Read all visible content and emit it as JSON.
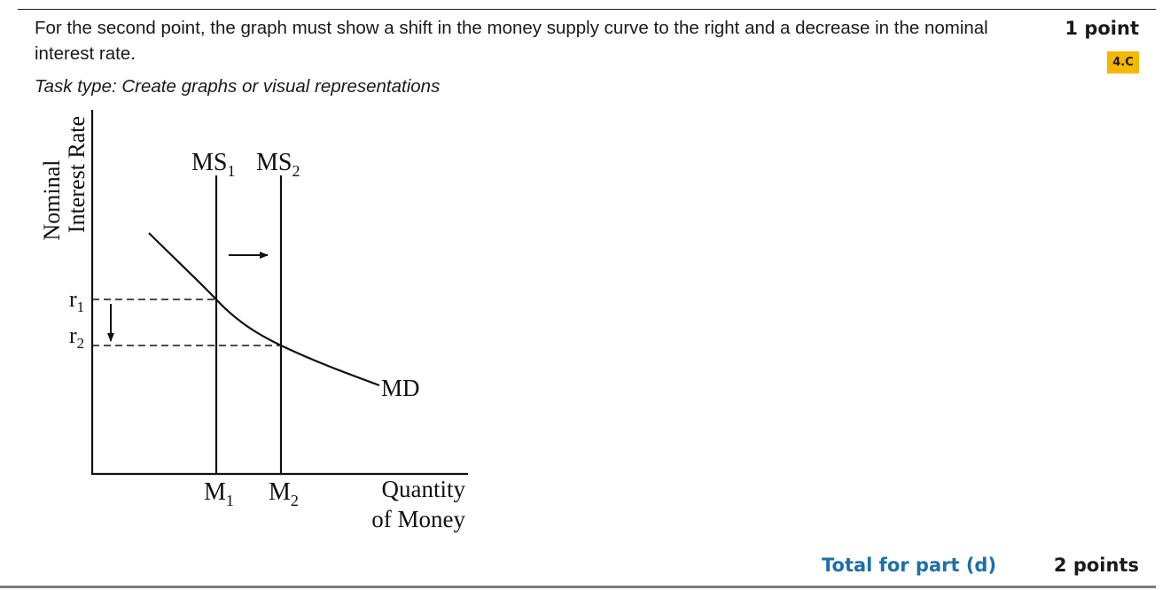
{
  "criterion": "For the second point, the graph must show a shift in the money supply curve to the right and a decrease in the nominal interest rate.",
  "task_type": "Task type: Create graphs or visual representations",
  "points": "1 point",
  "skill_badge": "4.C",
  "total_label": "Total for part (d)",
  "total_points": "2 points",
  "graph": {
    "y_axis_label_line1": "Nominal",
    "y_axis_label_line2": "Interest Rate",
    "x_axis_label_line1": "Quantity",
    "x_axis_label_line2": "of Money",
    "supply_1": {
      "base": "MS",
      "sub": "1"
    },
    "supply_2": {
      "base": "MS",
      "sub": "2"
    },
    "demand": "MD",
    "rate_1": {
      "base": "r",
      "sub": "1"
    },
    "rate_2": {
      "base": "r",
      "sub": "2"
    },
    "quantity_1": {
      "base": "M",
      "sub": "1"
    },
    "quantity_2": {
      "base": "M",
      "sub": "2"
    },
    "colors": {
      "badge": "#f5b800",
      "total": "#1d6fa8"
    }
  }
}
